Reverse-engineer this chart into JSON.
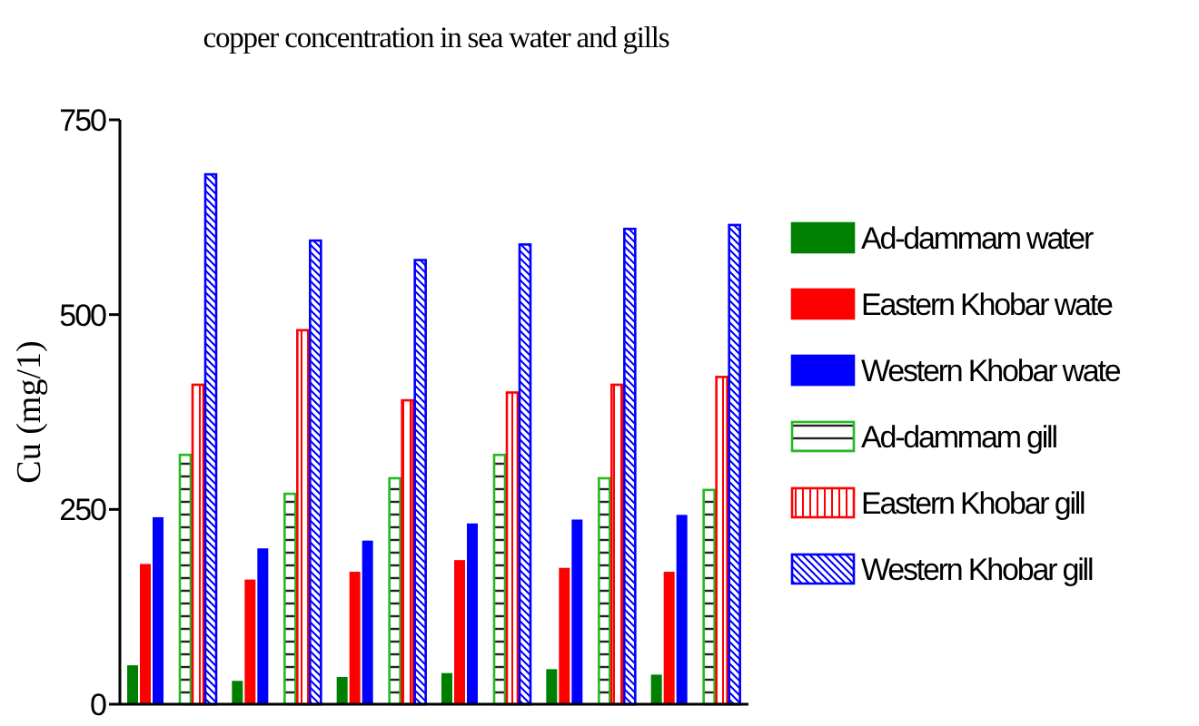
{
  "chart_data": {
    "type": "bar",
    "title": "copper concentration in sea water and gills",
    "ylabel": "Cu (mg/1)",
    "categories": [
      null,
      null,
      null,
      null,
      null,
      null
    ],
    "series": [
      {
        "name": "Ad-dammam water",
        "color": "#008000",
        "values": [
          50,
          30,
          35,
          40,
          45,
          38
        ]
      },
      {
        "name": "Eastern Khobar wate",
        "color": "#ff0000",
        "values": [
          180,
          160,
          170,
          185,
          175,
          170
        ]
      },
      {
        "name": "Western Khobar wate",
        "color": "#0000ff",
        "values": [
          240,
          200,
          210,
          232,
          237,
          243
        ]
      },
      {
        "name": "Ad-dammam gill",
        "color": "#22bb22",
        "values": [
          320,
          270,
          290,
          320,
          290,
          275
        ]
      },
      {
        "name": "Eastern Khobar gill",
        "color": "#ff0000",
        "values": [
          410,
          480,
          390,
          400,
          410,
          420
        ]
      },
      {
        "name": "Western Khobar gill",
        "color": "#0000ff",
        "values": [
          680,
          595,
          570,
          590,
          610,
          615
        ]
      }
    ],
    "ylim": [
      0,
      750
    ],
    "yticks": [
      0,
      250,
      500,
      750
    ],
    "legend": "right",
    "tick_labels": "y"
  }
}
